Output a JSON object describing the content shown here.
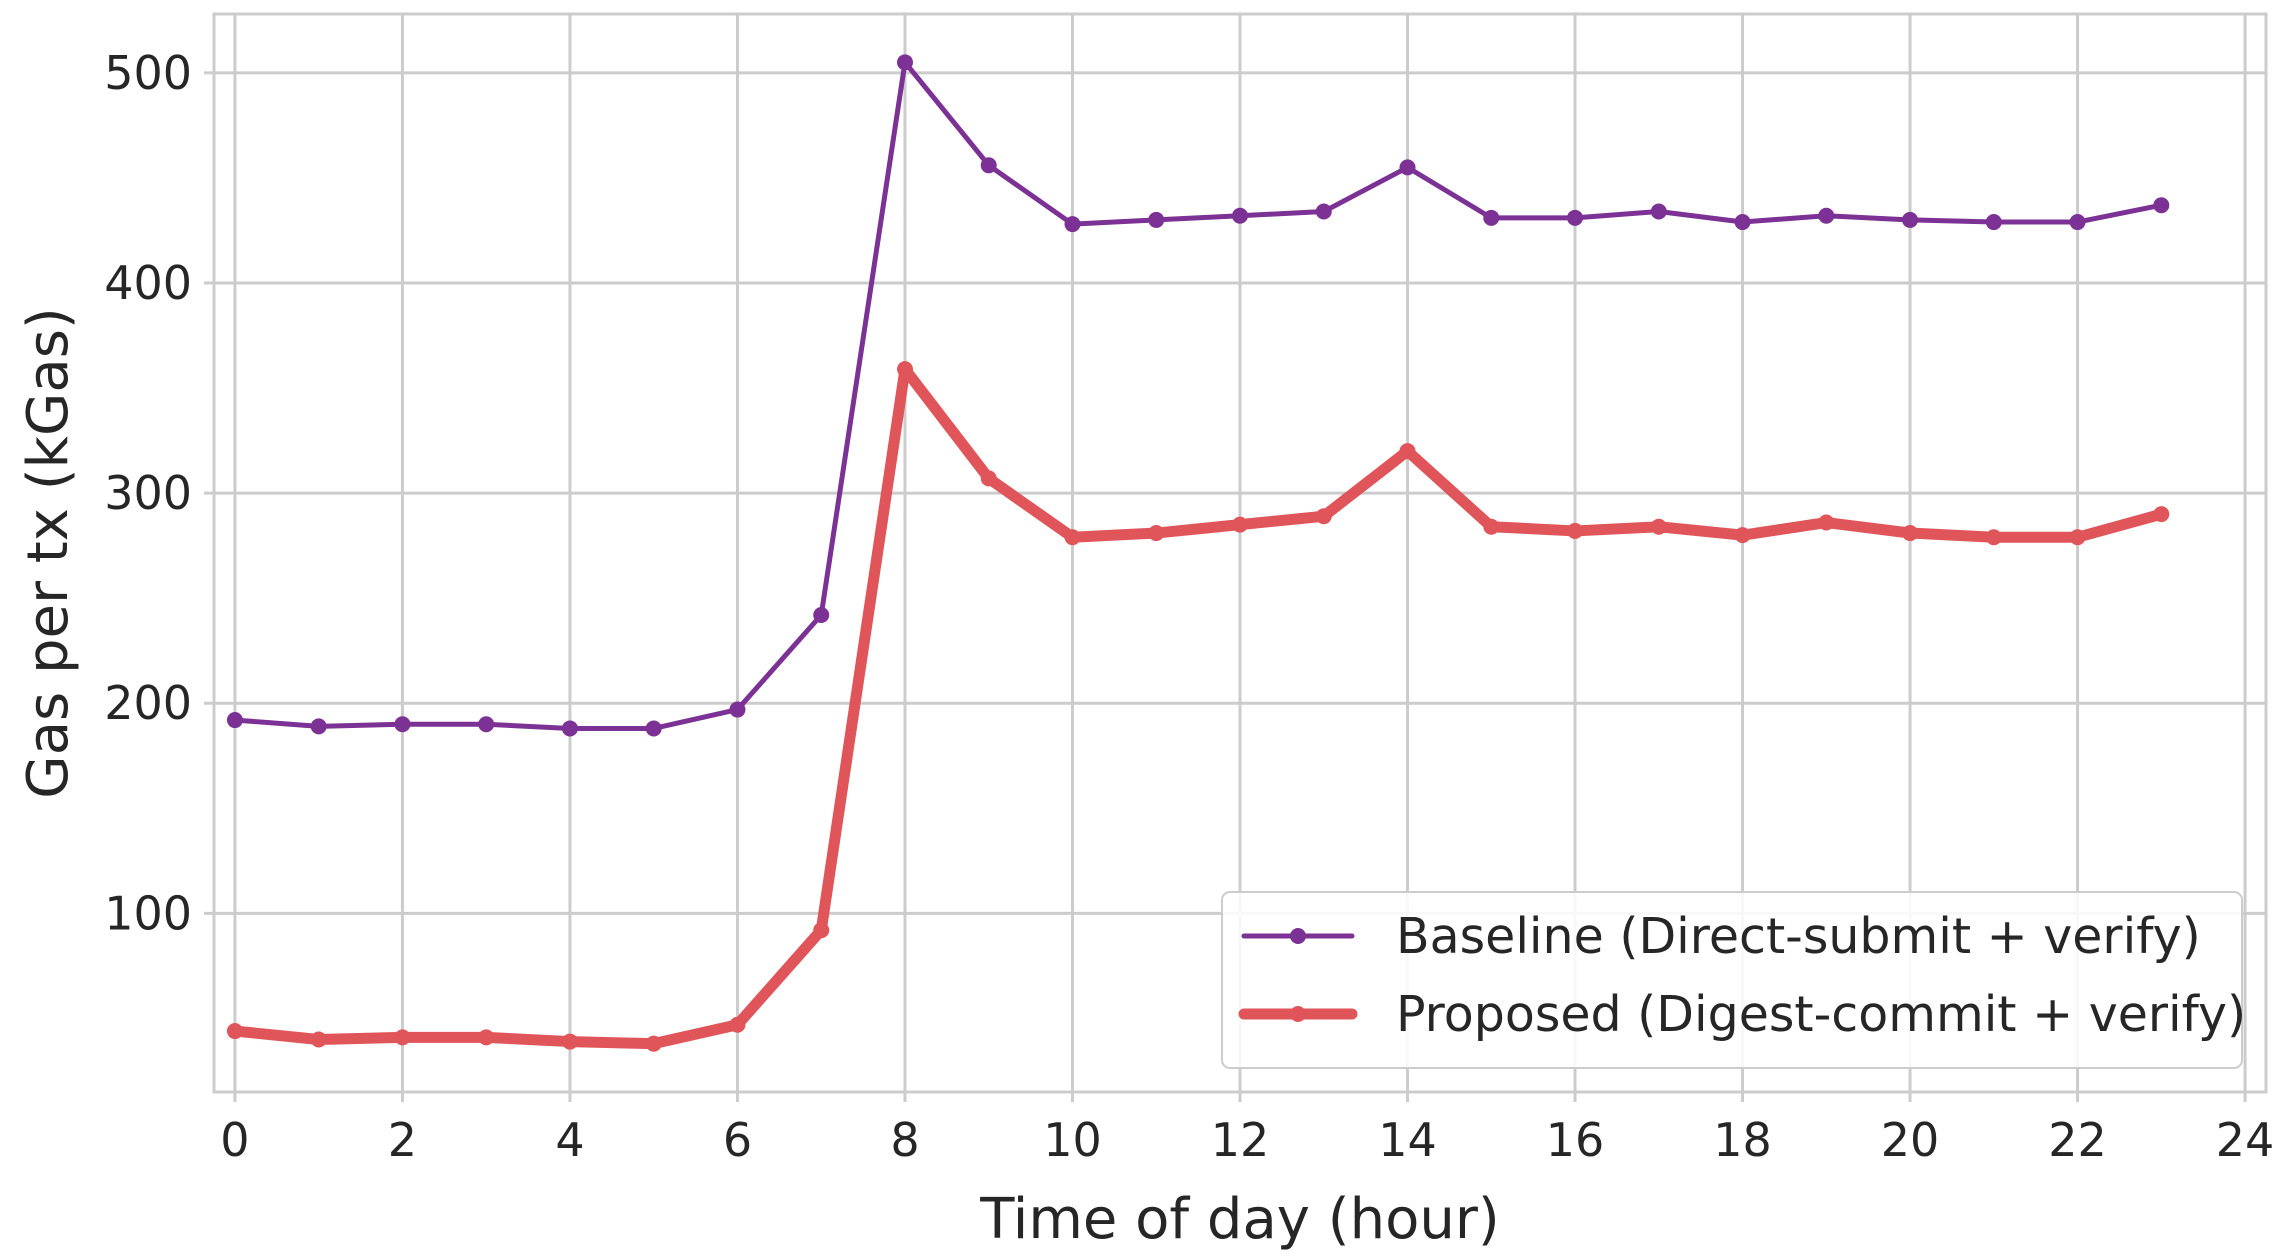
{
  "chart_data": {
    "type": "line",
    "xlabel": "Time of day (hour)",
    "ylabel": "Gas per tx (kGas)",
    "xlim": [
      -0.25,
      24.25
    ],
    "ylim": [
      15,
      528
    ],
    "xticks": [
      0,
      2,
      4,
      6,
      8,
      10,
      12,
      14,
      16,
      18,
      20,
      22,
      24
    ],
    "yticks": [
      100,
      200,
      300,
      400,
      500
    ],
    "grid": true,
    "legend_position": "lower-right",
    "x": [
      0,
      1,
      2,
      3,
      4,
      5,
      6,
      7,
      8,
      9,
      10,
      11,
      12,
      13,
      14,
      15,
      16,
      17,
      18,
      19,
      20,
      21,
      22,
      23
    ],
    "series": [
      {
        "name": "Baseline (Direct-submit + verify)",
        "color": "#7b3294",
        "values": [
          192,
          189,
          190,
          190,
          188,
          188,
          197,
          242,
          505,
          456,
          428,
          430,
          432,
          434,
          455,
          431,
          431,
          434,
          429,
          432,
          430,
          429,
          429,
          437
        ]
      },
      {
        "name": "Proposed (Digest-commit + verify)",
        "color": "#e05559",
        "values": [
          44,
          40,
          41,
          41,
          39,
          38,
          47,
          92,
          359,
          307,
          279,
          281,
          285,
          289,
          320,
          284,
          282,
          284,
          280,
          286,
          281,
          279,
          279,
          290
        ]
      }
    ]
  }
}
